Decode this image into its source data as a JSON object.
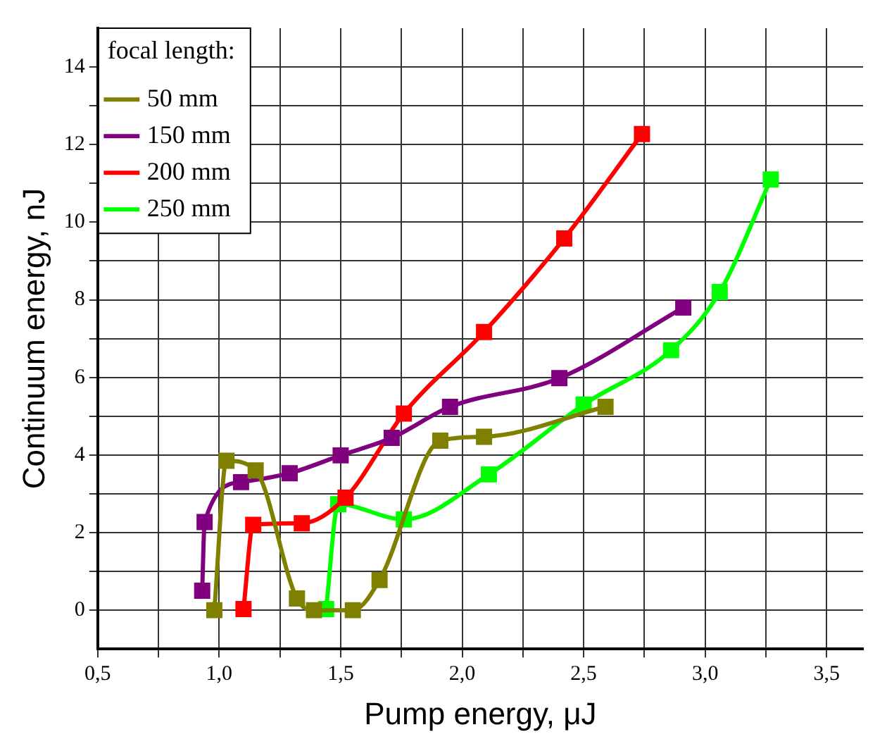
{
  "chart_data": {
    "type": "line",
    "xlabel": "Pump energy, μJ",
    "ylabel": "Continuum energy, nJ",
    "legend_title": "focal length:",
    "xlim": [
      0.5,
      3.65
    ],
    "ylim": [
      -1,
      15
    ],
    "xticks": [
      {
        "value": 0.5,
        "label": "0,5"
      },
      {
        "value": 0.75,
        "label": null
      },
      {
        "value": 1.0,
        "label": "1,0"
      },
      {
        "value": 1.25,
        "label": null
      },
      {
        "value": 1.5,
        "label": "1,5"
      },
      {
        "value": 1.75,
        "label": null
      },
      {
        "value": 2.0,
        "label": "2,0"
      },
      {
        "value": 2.25,
        "label": null
      },
      {
        "value": 2.5,
        "label": "2,5"
      },
      {
        "value": 2.75,
        "label": null
      },
      {
        "value": 3.0,
        "label": "3,0"
      },
      {
        "value": 3.25,
        "label": null
      },
      {
        "value": 3.5,
        "label": "3,5"
      }
    ],
    "yticks": [
      0,
      {
        "value": 1,
        "label": null
      },
      2,
      {
        "value": 3,
        "label": null
      },
      4,
      {
        "value": 5,
        "label": null
      },
      6,
      {
        "value": 7,
        "label": null
      },
      8,
      {
        "value": 9,
        "label": null
      },
      10,
      {
        "value": 11,
        "label": null
      },
      12,
      {
        "value": 13,
        "label": null
      },
      14
    ],
    "grid": true,
    "legend": "top left",
    "marker": "square",
    "line_style": "solid",
    "series": [
      {
        "name": "50 mm",
        "color": "#808000",
        "x": [
          0.98,
          1.03,
          1.15,
          1.32,
          1.39,
          1.55,
          1.66,
          1.91,
          2.09,
          2.59
        ],
        "values": [
          0,
          3.85,
          3.6,
          0.3,
          0,
          0,
          0.78,
          4.37,
          4.47,
          5.24
        ]
      },
      {
        "name": "150 mm",
        "color": "#800080",
        "x": [
          0.93,
          0.94,
          1.09,
          1.29,
          1.5,
          1.71,
          1.95,
          2.4,
          2.91
        ],
        "values": [
          0.5,
          2.27,
          3.3,
          3.53,
          3.99,
          4.44,
          5.24,
          5.98,
          7.8
        ]
      },
      {
        "name": "200 mm",
        "color": "#ff0000",
        "x": [
          1.1,
          1.14,
          1.34,
          1.52,
          1.76,
          2.09,
          2.42,
          2.74
        ],
        "values": [
          0.03,
          2.2,
          2.24,
          2.9,
          5.07,
          7.17,
          9.58,
          12.27
        ]
      },
      {
        "name": "250 mm",
        "color": "#00ff00",
        "x": [
          1.44,
          1.49,
          1.76,
          2.11,
          2.5,
          2.86,
          3.06,
          3.27
        ],
        "values": [
          0.03,
          2.73,
          2.34,
          3.5,
          5.3,
          6.7,
          8.2,
          11.1
        ]
      }
    ]
  }
}
